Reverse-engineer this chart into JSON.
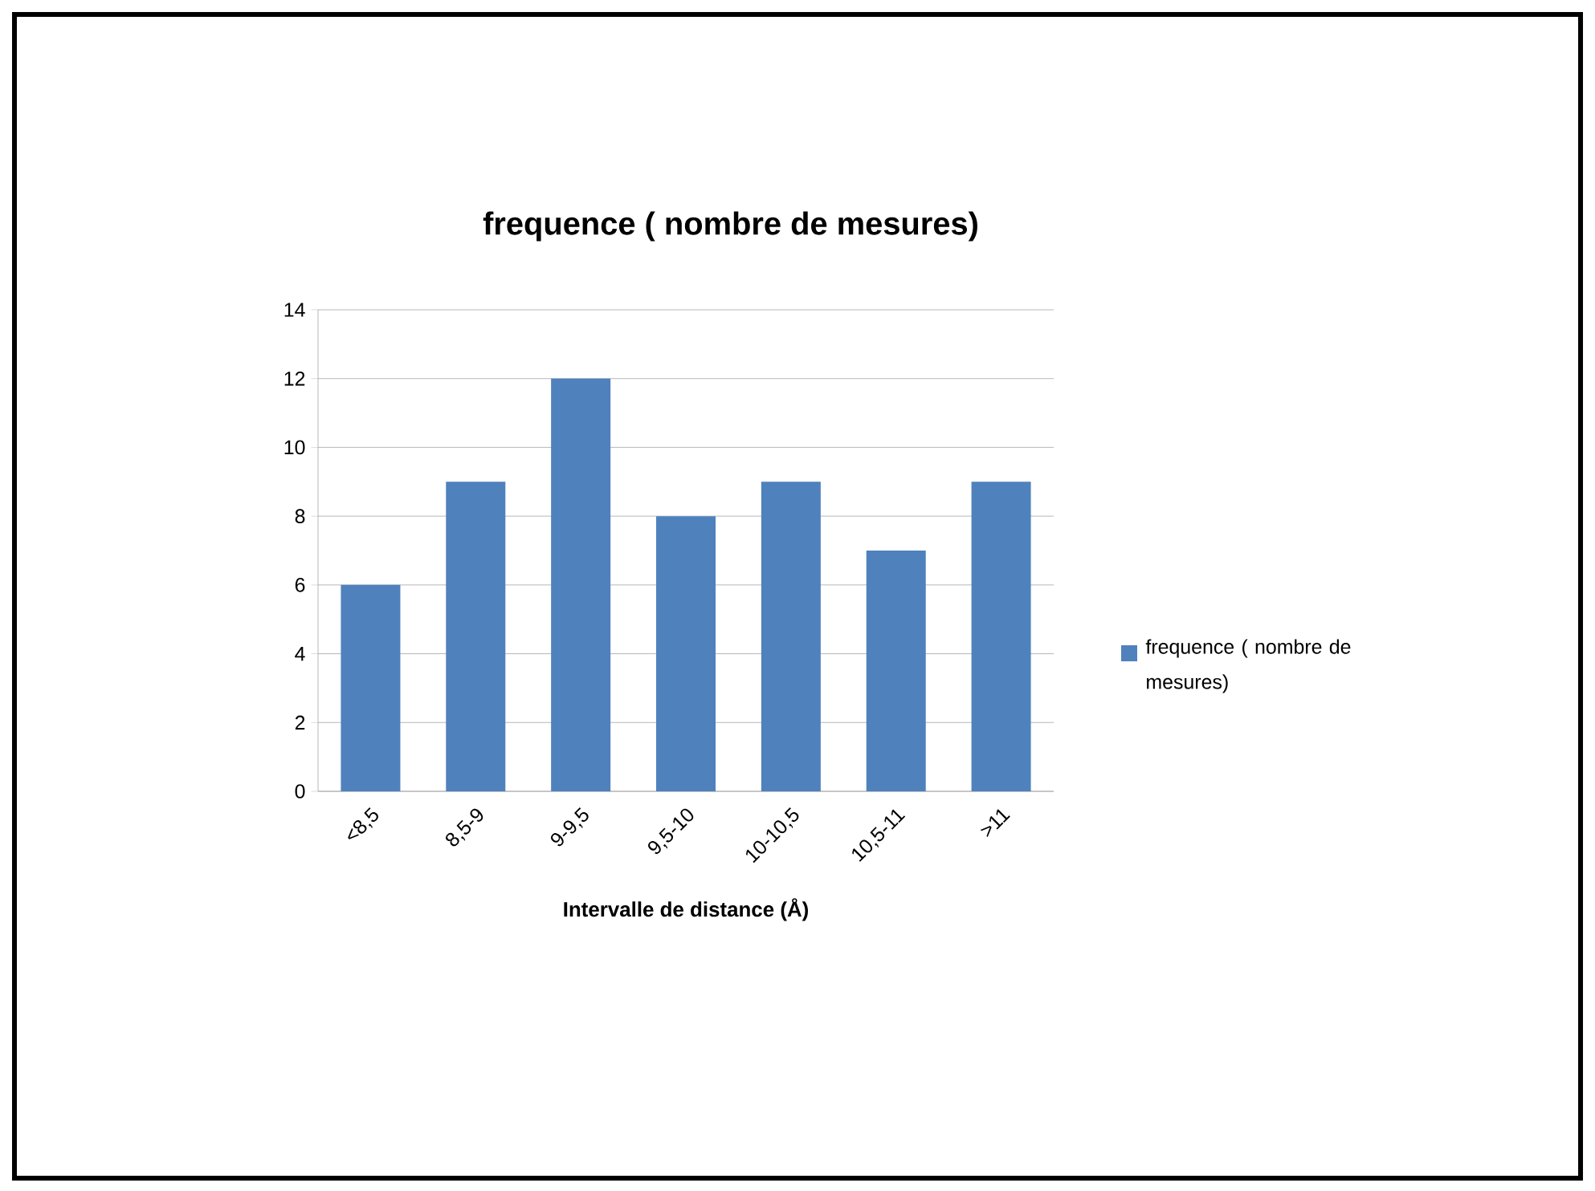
{
  "chart_data": {
    "type": "bar",
    "title": "frequence ( nombre de mesures)",
    "xlabel": "Intervalle de distance (Å)",
    "categories": [
      "<8,5",
      "8,5-9",
      "9-9,5",
      "9,5-10",
      "10-10,5",
      "10,5-11",
      ">11"
    ],
    "series": [
      {
        "name": "frequence ( nombre de mesures)",
        "color": "#4f81bd",
        "values": [
          6,
          9,
          12,
          8,
          9,
          7,
          9
        ]
      }
    ],
    "ylim": [
      0,
      14
    ],
    "yticks": [
      0,
      2,
      4,
      6,
      8,
      10,
      12,
      14
    ],
    "grid": "y",
    "legend": "right"
  }
}
